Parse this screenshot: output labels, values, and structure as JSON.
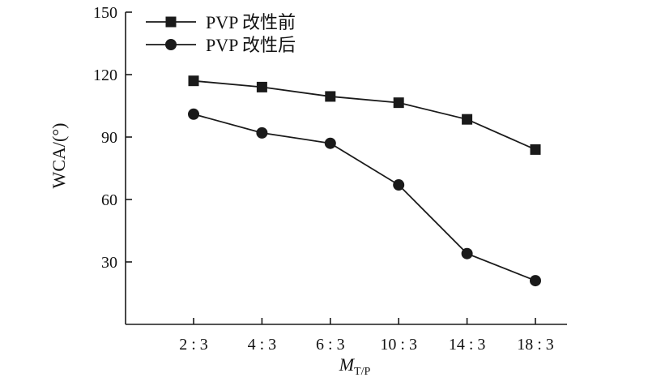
{
  "chart_data": {
    "type": "line",
    "categories": [
      "2 : 3",
      "4 : 3",
      "6 : 3",
      "10 : 3",
      "14 : 3",
      "18 : 3"
    ],
    "series": [
      {
        "name": "PVP 改性前",
        "marker": "square",
        "values": [
          117,
          114,
          109.5,
          106.5,
          98.5,
          84
        ]
      },
      {
        "name": "PVP 改性后",
        "marker": "circle",
        "values": [
          101,
          92,
          87,
          67,
          34,
          21
        ]
      }
    ],
    "yticks": [
      "30",
      "60",
      "90",
      "120",
      "150"
    ],
    "ylim": [
      0,
      150
    ],
    "ylabel": "WCA/(°)",
    "xlabel": {
      "main": "M",
      "sub": "T/P"
    },
    "legend_position": "top-left",
    "grid": false,
    "colors": {
      "line": "#1a1a1a",
      "axis": "#1a1a1a"
    }
  }
}
